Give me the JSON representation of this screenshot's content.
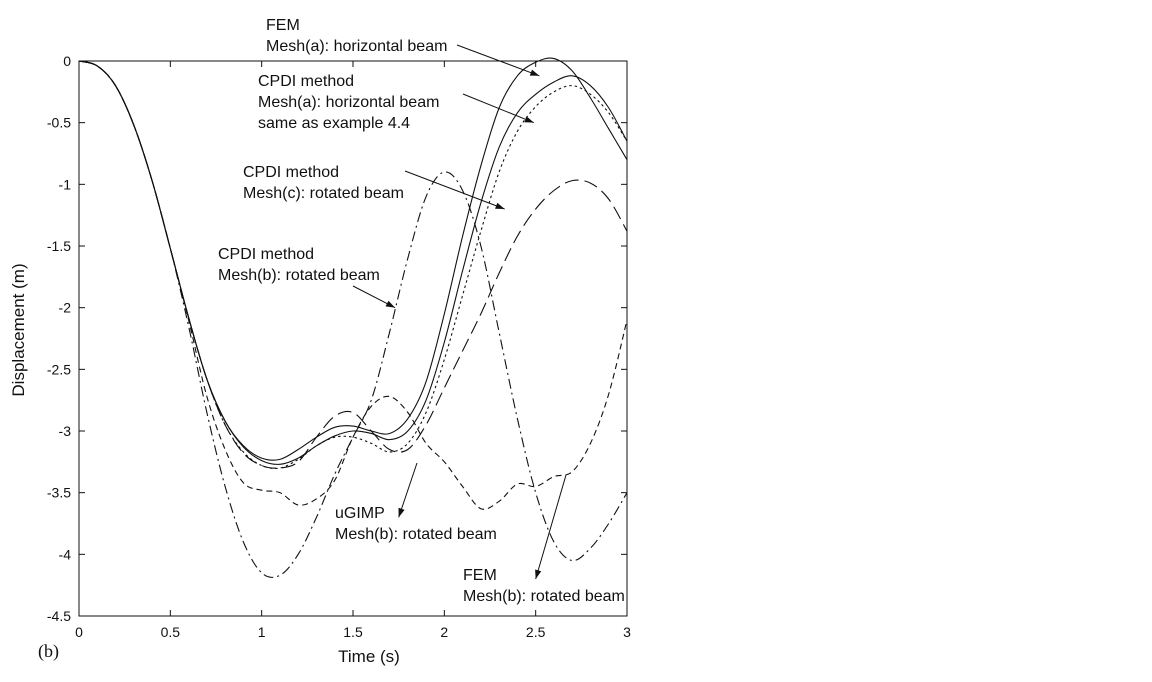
{
  "chart_data": {
    "type": "line",
    "panel_label": "(b)",
    "xlabel": "Time (s)",
    "ylabel": "Displacement (m)",
    "xlim": [
      0,
      3
    ],
    "ylim": [
      -4.5,
      0
    ],
    "xticks": [
      "0",
      "0.5",
      "1",
      "1.5",
      "2",
      "2.5",
      "3"
    ],
    "yticks": [
      "0",
      "-0.5",
      "-1",
      "-1.5",
      "-2",
      "-2.5",
      "-3",
      "-3.5",
      "-4",
      "-4.5"
    ],
    "grid": false,
    "series": [
      {
        "style": "solid",
        "points": [
          [
            0,
            0
          ],
          [
            0.1,
            -0.04
          ],
          [
            0.2,
            -0.2
          ],
          [
            0.3,
            -0.52
          ],
          [
            0.4,
            -0.97
          ],
          [
            0.5,
            -1.52
          ],
          [
            0.6,
            -2.08
          ],
          [
            0.7,
            -2.58
          ],
          [
            0.8,
            -2.92
          ],
          [
            0.9,
            -3.12
          ],
          [
            1.0,
            -3.22
          ],
          [
            1.1,
            -3.23
          ],
          [
            1.2,
            -3.15
          ],
          [
            1.3,
            -3.05
          ],
          [
            1.4,
            -2.97
          ],
          [
            1.5,
            -2.96
          ],
          [
            1.6,
            -3.0
          ],
          [
            1.7,
            -3.02
          ],
          [
            1.8,
            -2.9
          ],
          [
            1.9,
            -2.6
          ],
          [
            2.0,
            -2.05
          ],
          [
            2.1,
            -1.42
          ],
          [
            2.2,
            -0.85
          ],
          [
            2.3,
            -0.38
          ],
          [
            2.4,
            -0.12
          ],
          [
            2.5,
            -0.01
          ],
          [
            2.6,
            0.02
          ],
          [
            2.7,
            -0.08
          ],
          [
            2.8,
            -0.3
          ],
          [
            2.9,
            -0.55
          ],
          [
            3.0,
            -0.8
          ]
        ]
      },
      {
        "style": "solid",
        "points": [
          [
            0,
            0
          ],
          [
            0.1,
            -0.04
          ],
          [
            0.2,
            -0.2
          ],
          [
            0.3,
            -0.52
          ],
          [
            0.4,
            -0.97
          ],
          [
            0.5,
            -1.52
          ],
          [
            0.6,
            -2.08
          ],
          [
            0.7,
            -2.58
          ],
          [
            0.8,
            -2.92
          ],
          [
            0.9,
            -3.13
          ],
          [
            1.0,
            -3.24
          ],
          [
            1.1,
            -3.27
          ],
          [
            1.2,
            -3.22
          ],
          [
            1.3,
            -3.12
          ],
          [
            1.4,
            -3.04
          ],
          [
            1.5,
            -3.0
          ],
          [
            1.6,
            -3.02
          ],
          [
            1.7,
            -3.07
          ],
          [
            1.8,
            -3.0
          ],
          [
            1.9,
            -2.75
          ],
          [
            2.0,
            -2.28
          ],
          [
            2.1,
            -1.7
          ],
          [
            2.2,
            -1.15
          ],
          [
            2.3,
            -0.7
          ],
          [
            2.4,
            -0.42
          ],
          [
            2.5,
            -0.27
          ],
          [
            2.6,
            -0.17
          ],
          [
            2.7,
            -0.12
          ],
          [
            2.8,
            -0.2
          ],
          [
            2.9,
            -0.38
          ],
          [
            3.0,
            -0.65
          ]
        ]
      },
      {
        "style": "dotted",
        "points": [
          [
            0,
            0
          ],
          [
            0.1,
            -0.04
          ],
          [
            0.2,
            -0.2
          ],
          [
            0.3,
            -0.52
          ],
          [
            0.4,
            -0.97
          ],
          [
            0.5,
            -1.52
          ],
          [
            0.6,
            -2.08
          ],
          [
            0.7,
            -2.58
          ],
          [
            0.8,
            -2.95
          ],
          [
            0.9,
            -3.17
          ],
          [
            1.0,
            -3.28
          ],
          [
            1.1,
            -3.3
          ],
          [
            1.2,
            -3.23
          ],
          [
            1.3,
            -3.12
          ],
          [
            1.4,
            -3.05
          ],
          [
            1.5,
            -3.05
          ],
          [
            1.6,
            -3.1
          ],
          [
            1.7,
            -3.17
          ],
          [
            1.8,
            -3.1
          ],
          [
            1.9,
            -2.85
          ],
          [
            2.0,
            -2.42
          ],
          [
            2.1,
            -1.9
          ],
          [
            2.2,
            -1.38
          ],
          [
            2.3,
            -0.9
          ],
          [
            2.4,
            -0.57
          ],
          [
            2.5,
            -0.37
          ],
          [
            2.6,
            -0.25
          ],
          [
            2.7,
            -0.2
          ],
          [
            2.8,
            -0.27
          ],
          [
            2.9,
            -0.42
          ],
          [
            3.0,
            -0.65
          ]
        ]
      },
      {
        "style": "long-dash",
        "points": [
          [
            0,
            0
          ],
          [
            0.1,
            -0.04
          ],
          [
            0.2,
            -0.2
          ],
          [
            0.3,
            -0.52
          ],
          [
            0.4,
            -0.97
          ],
          [
            0.5,
            -1.52
          ],
          [
            0.6,
            -2.08
          ],
          [
            0.7,
            -2.58
          ],
          [
            0.8,
            -2.95
          ],
          [
            0.9,
            -3.18
          ],
          [
            1.0,
            -3.28
          ],
          [
            1.1,
            -3.3
          ],
          [
            1.2,
            -3.25
          ],
          [
            1.3,
            -3.05
          ],
          [
            1.4,
            -2.88
          ],
          [
            1.5,
            -2.85
          ],
          [
            1.6,
            -3.0
          ],
          [
            1.7,
            -3.15
          ],
          [
            1.8,
            -3.15
          ],
          [
            1.9,
            -2.95
          ],
          [
            2.0,
            -2.65
          ],
          [
            2.1,
            -2.35
          ],
          [
            2.2,
            -2.05
          ],
          [
            2.3,
            -1.72
          ],
          [
            2.4,
            -1.42
          ],
          [
            2.5,
            -1.2
          ],
          [
            2.6,
            -1.05
          ],
          [
            2.7,
            -0.97
          ],
          [
            2.8,
            -0.99
          ],
          [
            2.9,
            -1.12
          ],
          [
            3.0,
            -1.38
          ]
        ]
      },
      {
        "style": "short-dash",
        "points": [
          [
            0,
            0
          ],
          [
            0.1,
            -0.04
          ],
          [
            0.2,
            -0.2
          ],
          [
            0.3,
            -0.52
          ],
          [
            0.4,
            -0.97
          ],
          [
            0.5,
            -1.52
          ],
          [
            0.6,
            -2.1
          ],
          [
            0.7,
            -2.72
          ],
          [
            0.8,
            -3.15
          ],
          [
            0.9,
            -3.42
          ],
          [
            1.0,
            -3.48
          ],
          [
            1.1,
            -3.5
          ],
          [
            1.2,
            -3.6
          ],
          [
            1.3,
            -3.55
          ],
          [
            1.4,
            -3.4
          ],
          [
            1.5,
            -3.05
          ],
          [
            1.6,
            -2.8
          ],
          [
            1.7,
            -2.72
          ],
          [
            1.8,
            -2.85
          ],
          [
            1.9,
            -3.1
          ],
          [
            2.0,
            -3.25
          ],
          [
            2.1,
            -3.45
          ],
          [
            2.2,
            -3.63
          ],
          [
            2.3,
            -3.57
          ],
          [
            2.4,
            -3.43
          ],
          [
            2.5,
            -3.45
          ],
          [
            2.6,
            -3.37
          ],
          [
            2.7,
            -3.33
          ],
          [
            2.8,
            -3.1
          ],
          [
            2.9,
            -2.7
          ],
          [
            3.0,
            -2.1
          ]
        ]
      },
      {
        "style": "dash-dot",
        "points": [
          [
            0,
            0
          ],
          [
            0.1,
            -0.04
          ],
          [
            0.2,
            -0.2
          ],
          [
            0.3,
            -0.52
          ],
          [
            0.4,
            -0.97
          ],
          [
            0.5,
            -1.52
          ],
          [
            0.6,
            -2.15
          ],
          [
            0.7,
            -2.85
          ],
          [
            0.8,
            -3.45
          ],
          [
            0.9,
            -3.9
          ],
          [
            1.0,
            -4.15
          ],
          [
            1.1,
            -4.17
          ],
          [
            1.2,
            -4.0
          ],
          [
            1.3,
            -3.7
          ],
          [
            1.4,
            -3.35
          ],
          [
            1.5,
            -3.05
          ],
          [
            1.6,
            -2.75
          ],
          [
            1.7,
            -2.2
          ],
          [
            1.8,
            -1.6
          ],
          [
            1.9,
            -1.1
          ],
          [
            2.0,
            -0.9
          ],
          [
            2.1,
            -1.05
          ],
          [
            2.2,
            -1.5
          ],
          [
            2.3,
            -2.2
          ],
          [
            2.4,
            -2.9
          ],
          [
            2.5,
            -3.5
          ],
          [
            2.6,
            -3.9
          ],
          [
            2.7,
            -4.05
          ],
          [
            2.8,
            -3.95
          ],
          [
            2.9,
            -3.75
          ],
          [
            3.0,
            -3.5
          ]
        ]
      }
    ],
    "annotations": [
      {
        "lines": [
          "FEM",
          "Mesh(a): horizontal beam"
        ],
        "arrow_to": [
          2.52,
          -0.12
        ]
      },
      {
        "lines": [
          "CPDI method",
          "Mesh(a): horizontal beam",
          "same as example 4.4"
        ],
        "arrow_to": [
          2.49,
          -0.5
        ]
      },
      {
        "lines": [
          "CPDI method",
          "Mesh(c): rotated beam"
        ],
        "arrow_to": [
          2.33,
          -1.2
        ]
      },
      {
        "lines": [
          "CPDI method",
          "Mesh(b): rotated beam"
        ],
        "arrow_to": [
          1.73,
          -2.0
        ]
      },
      {
        "lines": [
          "uGIMP",
          "Mesh(b): rotated beam"
        ],
        "arrow_to": [
          1.75,
          -3.7
        ]
      },
      {
        "lines": [
          "FEM",
          "Mesh(b): rotated beam"
        ],
        "arrow_to": [
          2.5,
          -4.2
        ]
      }
    ]
  }
}
